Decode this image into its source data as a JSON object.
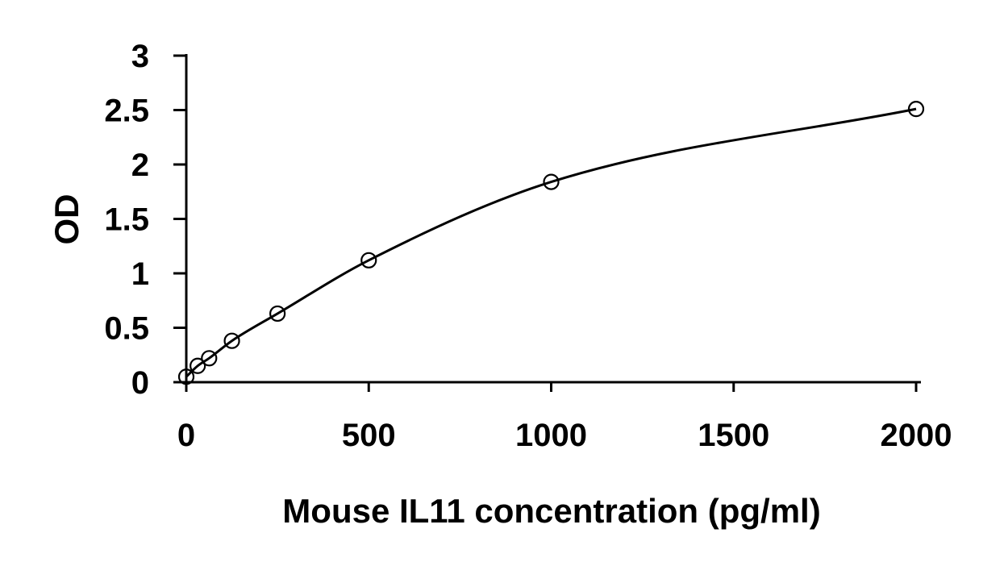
{
  "chart_data": {
    "type": "scatter",
    "title": "",
    "xlabel": "Mouse IL11 concentration (pg/ml)",
    "ylabel": "OD",
    "xlim": [
      0,
      2000
    ],
    "ylim": [
      0,
      3
    ],
    "xticks": [
      "0",
      "500",
      "1000",
      "1500",
      "2000"
    ],
    "yticks": [
      "0",
      "0.5",
      "1",
      "1.5",
      "2",
      "2.5",
      "3"
    ],
    "grid": false,
    "legend": "none",
    "series": [
      {
        "x": [
          0,
          31.25,
          62.5,
          125,
          250,
          500,
          1000,
          2000
        ],
        "y": [
          0.05,
          0.15,
          0.22,
          0.38,
          0.63,
          1.12,
          1.84,
          2.51
        ],
        "marker": "open-circle",
        "trendline": "smooth-curve"
      }
    ]
  }
}
